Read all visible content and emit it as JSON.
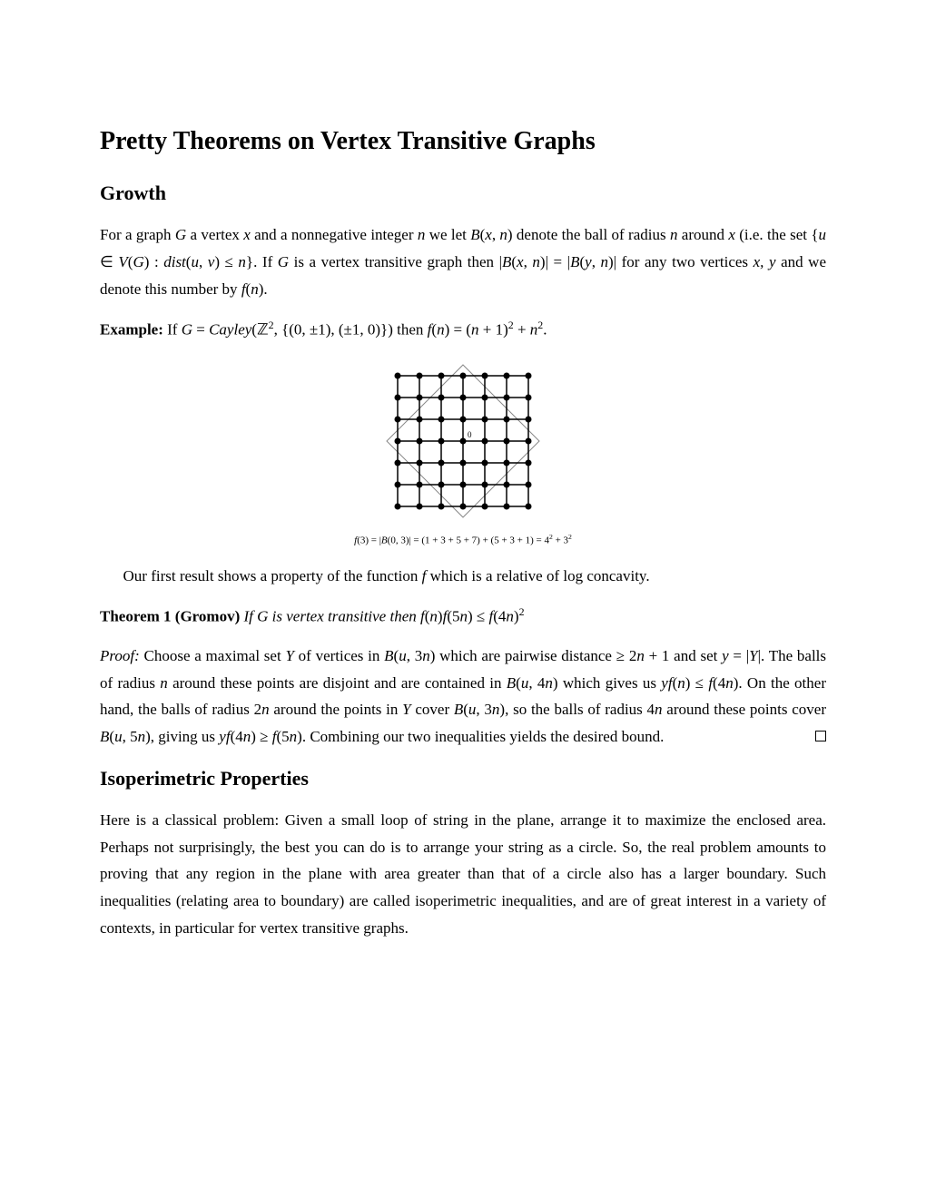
{
  "title": "Pretty Theorems on Vertex Transitive Graphs",
  "section1": "Growth",
  "para1_a": "For a graph ",
  "para1_b": " a vertex ",
  "para1_c": " and a nonnegative integer ",
  "para1_d": " we let ",
  "para1_e": " denote the ball of radius ",
  "para1_f": " around ",
  "para1_g": " (i.e. the set ",
  "para1_h": ". If ",
  "para1_i": " is a vertex transitive graph then ",
  "para1_j": " for any two vertices ",
  "para1_k": " and we denote this number by ",
  "example_label": "Example:",
  "example_a": " If ",
  "example_b": " then ",
  "caption": "f(3) = |B(0,3)| = (1 + 3 + 5 + 7) + (5 + 3 + 1) = 4² + 3²",
  "para2": "Our first result shows a property of the function ",
  "para2_b": " which is a relative of log concavity.",
  "theorem_label": "Theorem 1 (Gromov)",
  "theorem_a": " If ",
  "theorem_b": " is vertex transitive then ",
  "proof_label": "Proof:",
  "proof_a": " Choose a maximal set ",
  "proof_b": " of vertices in ",
  "proof_c": " which are pairwise distance ",
  "proof_d": " and set ",
  "proof_e": ". The balls of radius ",
  "proof_f": " around these points are disjoint and are contained in ",
  "proof_g": " which gives us ",
  "proof_h": ". On the other hand, the balls of radius ",
  "proof_i": " around the points in ",
  "proof_j": " cover ",
  "proof_k": ", so the balls of radius ",
  "proof_l": " around these points cover ",
  "proof_m": ", giving us ",
  "proof_n": ". Combining our two inequalities yields the desired bound.",
  "section2": "Isoperimetric Properties",
  "para3": "Here is a classical problem: Given a small loop of string in the plane, arrange it to maximize the enclosed area. Perhaps not surprisingly, the best you can do is to arrange your string as a circle. So, the real problem amounts to proving that any region in the plane with area greater than that of a circle also has a larger boundary. Such inequalities (relating area to boundary) are called isoperimetric inequalities, and are of great interest in a variety of contexts, in particular for vertex transitive graphs.",
  "figure": {
    "grid_size": 7,
    "cell": 24,
    "dot_radius": 3.5,
    "grid_color": "#000000",
    "diamond_color": "#888888",
    "diamond_stroke": 1,
    "grid_stroke": 1.5,
    "center_label": "0",
    "label_fontsize": 9
  }
}
